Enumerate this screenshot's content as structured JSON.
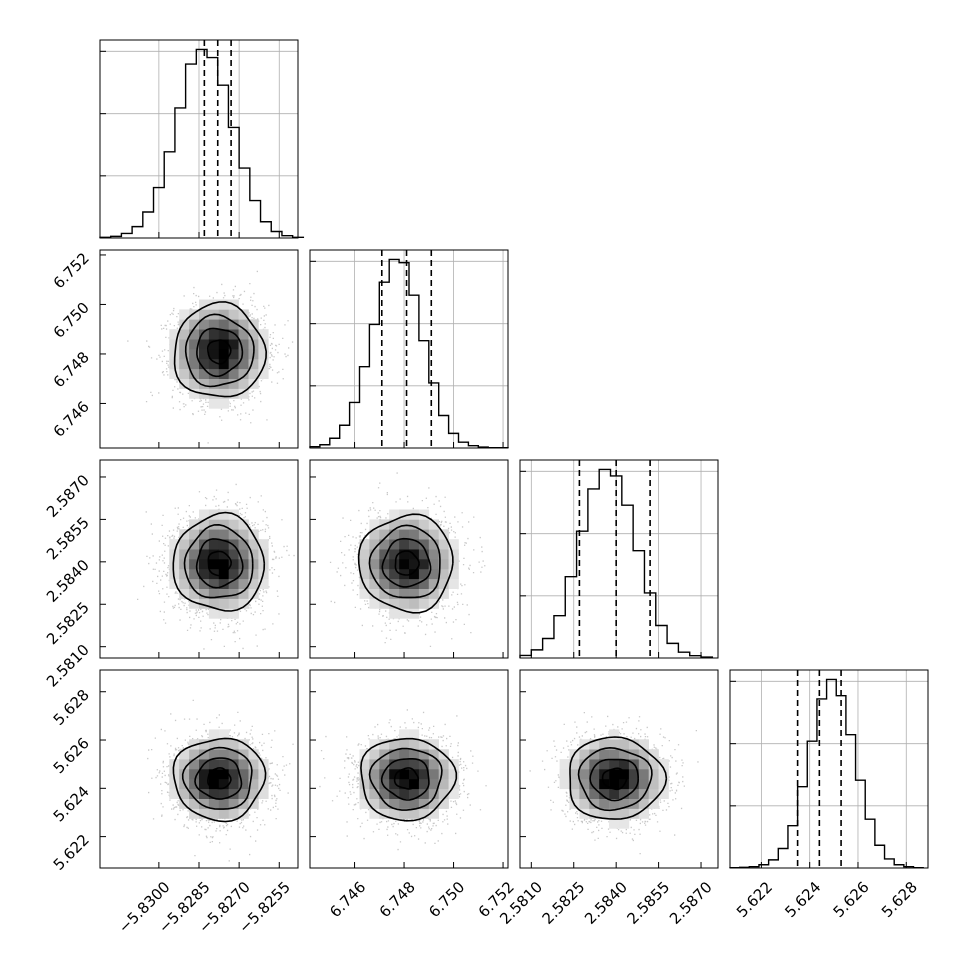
{
  "chart_data": {
    "type": "corner",
    "title": "",
    "n_params": 4,
    "grid": true,
    "colors": {
      "line": "#000000",
      "grid": "#b0b0b0",
      "scatter": "#9a9a9a",
      "background": "#ffffff"
    },
    "params": [
      {
        "name": "",
        "range": [
          -5.8322,
          -5.8248
        ],
        "ticks": [
          -5.83,
          -5.8285,
          -5.827,
          -5.8255
        ],
        "tick_labels": [
          "−5.8300",
          "−5.8285",
          "−5.8270",
          "−5.8255"
        ],
        "mean": -5.82775,
        "sigma": 0.00085,
        "quantiles": [
          -5.8283,
          -5.8278,
          -5.8273
        ]
      },
      {
        "name": "",
        "range": [
          6.7442,
          6.7522
        ],
        "ticks": [
          6.746,
          6.748,
          6.75,
          6.752
        ],
        "tick_labels": [
          "6.746",
          "6.748",
          "6.750",
          "6.752"
        ],
        "mean": 6.7481,
        "sigma": 0.00095,
        "quantiles": [
          6.7471,
          6.7481,
          6.7491
        ]
      },
      {
        "name": "",
        "range": [
          2.5806,
          2.5876
        ],
        "ticks": [
          2.581,
          2.5825,
          2.584,
          2.5855,
          2.587
        ],
        "tick_labels": [
          "2.5810",
          "2.5825",
          "2.5840",
          "2.5855",
          "2.5870"
        ],
        "mean": 2.58395,
        "sigma": 0.00085,
        "quantiles": [
          2.5827,
          2.584,
          2.5852
        ]
      },
      {
        "name": "",
        "range": [
          5.6207,
          5.6289
        ],
        "ticks": [
          5.622,
          5.624,
          5.626,
          5.628
        ],
        "tick_labels": [
          "5.622",
          "5.624",
          "5.626",
          "5.628"
        ],
        "mean": 5.6244,
        "sigma": 0.00085,
        "quantiles": [
          5.6235,
          5.6244,
          5.6253
        ]
      }
    ],
    "histograms": [
      {
        "param": 0,
        "bin_edges": [
          -5.8322,
          -5.8318,
          -5.8314,
          -5.831,
          -5.8306,
          -5.8302,
          -5.8298,
          -5.8294,
          -5.829,
          -5.8286,
          -5.8282,
          -5.8278,
          -5.8274,
          -5.827,
          -5.8266,
          -5.8262,
          -5.8258,
          -5.8254,
          -5.825,
          -5.8246
        ],
        "counts": [
          2,
          5,
          14,
          35,
          80,
          155,
          265,
          400,
          535,
          580,
          555,
          470,
          340,
          215,
          115,
          50,
          20,
          7,
          2
        ]
      },
      {
        "param": 1,
        "bin_edges": [
          6.7442,
          6.7446,
          6.745,
          6.7454,
          6.7458,
          6.7462,
          6.7466,
          6.747,
          6.7474,
          6.7478,
          6.7482,
          6.7486,
          6.749,
          6.7494,
          6.7498,
          6.7502,
          6.7506,
          6.751,
          6.7514,
          6.7518,
          6.7522
        ],
        "counts": [
          4,
          10,
          30,
          70,
          140,
          250,
          380,
          510,
          580,
          570,
          470,
          330,
          200,
          100,
          45,
          18,
          7,
          3,
          1,
          1
        ]
      },
      {
        "param": 2,
        "bin_edges": [
          2.5806,
          2.581,
          2.5814,
          2.5818,
          2.5822,
          2.5826,
          2.583,
          2.5834,
          2.5838,
          2.5842,
          2.5846,
          2.585,
          2.5854,
          2.5858,
          2.5862,
          2.5866,
          2.587,
          2.5874
        ],
        "counts": [
          8,
          25,
          60,
          130,
          250,
          390,
          520,
          580,
          560,
          470,
          330,
          200,
          100,
          45,
          18,
          7,
          3
        ]
      },
      {
        "param": 3,
        "bin_edges": [
          5.6207,
          5.6211,
          5.6215,
          5.6219,
          5.6223,
          5.6227,
          5.6231,
          5.6235,
          5.6239,
          5.6243,
          5.6247,
          5.6251,
          5.6255,
          5.6259,
          5.6263,
          5.6267,
          5.6271,
          5.6275,
          5.6279,
          5.6283,
          5.6287
        ],
        "counts": [
          1,
          2,
          4,
          10,
          25,
          60,
          130,
          250,
          390,
          520,
          580,
          530,
          410,
          270,
          150,
          70,
          28,
          10,
          4,
          1
        ]
      }
    ],
    "scatter_panels": [
      {
        "x": 0,
        "y": 1
      },
      {
        "x": 0,
        "y": 2
      },
      {
        "x": 1,
        "y": 2
      },
      {
        "x": 0,
        "y": 3
      },
      {
        "x": 1,
        "y": 3
      },
      {
        "x": 2,
        "y": 3
      }
    ],
    "contour_levels_sigma": [
      0.5,
      1.0,
      1.5,
      2.0
    ],
    "axis_labels_bottom": [
      0,
      1,
      2,
      3
    ],
    "axis_labels_left": [
      1,
      2,
      3
    ]
  }
}
